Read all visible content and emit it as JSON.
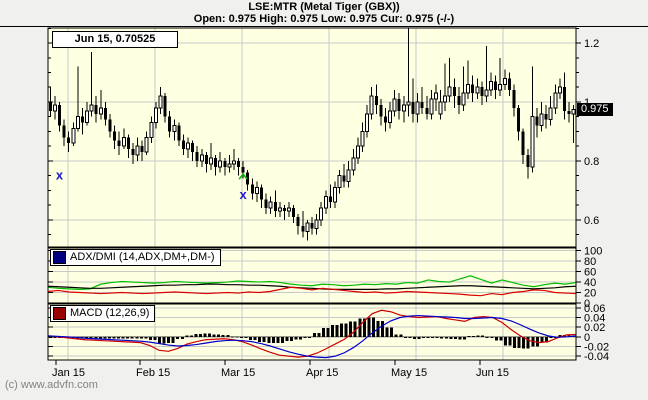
{
  "header": {
    "title": "LSE:MTR (Metal Tiger (GBX))",
    "ohlc_line": "Open: 0.975 High: 0.975 Low: 0.975 Cur: 0.975 (-/-)"
  },
  "overlays": {
    "date_price_label": "Jun 15, 0.70525",
    "adx_legend": "ADX/DMI (14,ADX,DM+,DM-)",
    "macd_legend": "MACD (12,26,9)",
    "price_tag": "0.975",
    "copyright": "(c) www.advfn.com"
  },
  "colors": {
    "outer_bg": "#f0f0ee",
    "panel_bg": "#ffffe1",
    "grid": "#c9c9c9",
    "axis": "#000000",
    "candle_up": "#ffffff",
    "candle_down": "#000000",
    "dm_plus": "#00bb00",
    "dm_minus": "#dd0000",
    "adx_line": "#000000",
    "macd_line": "#cc0000",
    "signal_line": "#0000cc",
    "histogram": "#000000",
    "adx_swatch": "#000080",
    "macd_swatch": "#990000",
    "price_tag_bg": "#000000",
    "price_tag_fg": "#ffffff",
    "marker_blue": "#1a1acc",
    "marker_green": "#00bb00"
  },
  "chart_data": [
    {
      "type": "candlestick",
      "title": "LSE:MTR daily price (GBX)",
      "ylim": [
        0.508,
        1.251
      ],
      "yticks": [
        1.2,
        1,
        0.8,
        0.6
      ],
      "ytick_labels": [
        "1.2",
        "1",
        "0.8",
        "0.6"
      ],
      "current_price": 0.975,
      "grid": true,
      "x_axis": {
        "tick_labels": [
          "Jan 15",
          "Feb 15",
          "Mar 15",
          "Apr 15",
          "May 15",
          "Jun 15"
        ]
      },
      "markers": [
        {
          "day": 2,
          "price": 0.75,
          "type": "x"
        },
        {
          "day": 42,
          "price": 0.745,
          "type": "caret"
        },
        {
          "day": 42,
          "price": 0.685,
          "type": "x"
        }
      ],
      "candles": [
        [
          1.0,
          1.05,
          0.95,
          0.97
        ],
        [
          0.97,
          1.02,
          0.94,
          0.99
        ],
        [
          0.99,
          1.0,
          0.9,
          0.92
        ],
        [
          0.92,
          0.94,
          0.85,
          0.88
        ],
        [
          0.88,
          0.9,
          0.83,
          0.86
        ],
        [
          0.86,
          0.93,
          0.85,
          0.91
        ],
        [
          0.91,
          1.12,
          0.9,
          0.95
        ],
        [
          0.95,
          0.98,
          0.89,
          0.93
        ],
        [
          0.93,
          1.0,
          0.92,
          0.97
        ],
        [
          0.97,
          1.17,
          0.95,
          0.99
        ],
        [
          0.99,
          1.02,
          0.93,
          0.96
        ],
        [
          0.96,
          1.04,
          0.94,
          0.98
        ],
        [
          0.98,
          1.0,
          0.92,
          0.94
        ],
        [
          0.94,
          0.96,
          0.88,
          0.9
        ],
        [
          0.9,
          0.92,
          0.84,
          0.87
        ],
        [
          0.87,
          0.9,
          0.82,
          0.85
        ],
        [
          0.85,
          0.91,
          0.84,
          0.88
        ],
        [
          0.88,
          0.89,
          0.81,
          0.84
        ],
        [
          0.84,
          0.86,
          0.79,
          0.82
        ],
        [
          0.82,
          0.88,
          0.8,
          0.85
        ],
        [
          0.85,
          0.87,
          0.8,
          0.83
        ],
        [
          0.83,
          0.9,
          0.82,
          0.88
        ],
        [
          0.88,
          0.95,
          0.86,
          0.93
        ],
        [
          0.93,
          1.0,
          0.91,
          0.98
        ],
        [
          0.98,
          1.05,
          0.96,
          1.02
        ],
        [
          1.02,
          1.03,
          0.93,
          0.95
        ],
        [
          0.95,
          0.97,
          0.88,
          0.9
        ],
        [
          0.9,
          0.94,
          0.87,
          0.92
        ],
        [
          0.92,
          0.93,
          0.85,
          0.87
        ],
        [
          0.87,
          0.89,
          0.82,
          0.84
        ],
        [
          0.84,
          0.88,
          0.81,
          0.86
        ],
        [
          0.86,
          0.87,
          0.8,
          0.83
        ],
        [
          0.83,
          0.85,
          0.78,
          0.8
        ],
        [
          0.8,
          0.84,
          0.78,
          0.82
        ],
        [
          0.82,
          0.83,
          0.76,
          0.79
        ],
        [
          0.79,
          0.86,
          0.77,
          0.81
        ],
        [
          0.81,
          0.82,
          0.75,
          0.78
        ],
        [
          0.78,
          0.83,
          0.76,
          0.8
        ],
        [
          0.8,
          0.81,
          0.75,
          0.78
        ],
        [
          0.78,
          0.82,
          0.76,
          0.79
        ],
        [
          0.79,
          0.84,
          0.77,
          0.8
        ],
        [
          0.8,
          0.81,
          0.75,
          0.78
        ],
        [
          0.78,
          0.8,
          0.74,
          0.76
        ],
        [
          0.76,
          0.77,
          0.7,
          0.72
        ],
        [
          0.72,
          0.74,
          0.67,
          0.69
        ],
        [
          0.69,
          0.73,
          0.66,
          0.71
        ],
        [
          0.71,
          0.72,
          0.64,
          0.67
        ],
        [
          0.67,
          0.69,
          0.62,
          0.64
        ],
        [
          0.64,
          0.68,
          0.62,
          0.66
        ],
        [
          0.66,
          0.7,
          0.61,
          0.63
        ],
        [
          0.63,
          0.66,
          0.61,
          0.64
        ],
        [
          0.64,
          0.65,
          0.6,
          0.63
        ],
        [
          0.63,
          0.66,
          0.61,
          0.64
        ],
        [
          0.64,
          0.65,
          0.59,
          0.61
        ],
        [
          0.61,
          0.62,
          0.55,
          0.58
        ],
        [
          0.58,
          0.63,
          0.54,
          0.56
        ],
        [
          0.56,
          0.6,
          0.53,
          0.59
        ],
        [
          0.59,
          0.61,
          0.55,
          0.57
        ],
        [
          0.57,
          0.62,
          0.55,
          0.6
        ],
        [
          0.6,
          0.66,
          0.58,
          0.64
        ],
        [
          0.64,
          0.7,
          0.62,
          0.68
        ],
        [
          0.68,
          0.72,
          0.64,
          0.66
        ],
        [
          0.66,
          0.73,
          0.64,
          0.71
        ],
        [
          0.71,
          0.77,
          0.69,
          0.75
        ],
        [
          0.75,
          0.79,
          0.71,
          0.73
        ],
        [
          0.73,
          0.8,
          0.71,
          0.77
        ],
        [
          0.77,
          0.84,
          0.75,
          0.81
        ],
        [
          0.81,
          0.88,
          0.79,
          0.85
        ],
        [
          0.85,
          0.93,
          0.83,
          0.9
        ],
        [
          0.9,
          0.99,
          0.88,
          0.96
        ],
        [
          0.96,
          1.05,
          0.94,
          1.02
        ],
        [
          1.02,
          1.06,
          0.96,
          0.99
        ],
        [
          0.99,
          1.01,
          0.92,
          0.95
        ],
        [
          0.95,
          0.98,
          0.9,
          0.93
        ],
        [
          0.93,
          1.0,
          0.91,
          0.97
        ],
        [
          0.97,
          1.04,
          0.95,
          1.01
        ],
        [
          1.01,
          1.03,
          0.94,
          0.97
        ],
        [
          0.97,
          1.02,
          0.93,
          0.99
        ],
        [
          0.99,
          1.25,
          0.95,
          1.0
        ],
        [
          1.0,
          1.08,
          0.93,
          0.96
        ],
        [
          0.96,
          1.03,
          0.93,
          1.0
        ],
        [
          1.0,
          1.05,
          0.96,
          0.98
        ],
        [
          0.98,
          1.02,
          0.94,
          0.96
        ],
        [
          0.96,
          1.04,
          0.94,
          1.01
        ],
        [
          1.01,
          1.06,
          0.97,
          1.03
        ],
        [
          0.96,
          1.04,
          0.94,
          1.0
        ],
        [
          1.0,
          1.13,
          0.97,
          1.02
        ],
        [
          1.02,
          1.15,
          1.0,
          1.05
        ],
        [
          1.05,
          1.08,
          0.98,
          1.02
        ],
        [
          1.02,
          1.05,
          0.96,
          0.99
        ],
        [
          0.99,
          1.12,
          0.97,
          1.03
        ],
        [
          1.03,
          1.14,
          1.01,
          1.06
        ],
        [
          1.06,
          1.09,
          1.0,
          1.03
        ],
        [
          1.03,
          1.08,
          1.01,
          1.05
        ],
        [
          1.05,
          1.07,
          0.99,
          1.02
        ],
        [
          1.02,
          1.19,
          1.0,
          1.04
        ],
        [
          1.04,
          1.1,
          1.02,
          1.07
        ],
        [
          1.07,
          1.09,
          1.01,
          1.04
        ],
        [
          1.04,
          1.15,
          1.02,
          1.06
        ],
        [
          1.06,
          1.11,
          1.04,
          1.08
        ],
        [
          1.08,
          1.1,
          1.02,
          1.04
        ],
        [
          1.04,
          1.06,
          0.95,
          0.98
        ],
        [
          0.98,
          0.99,
          0.87,
          0.9
        ],
        [
          0.9,
          0.91,
          0.79,
          0.82
        ],
        [
          0.82,
          0.84,
          0.74,
          0.78
        ],
        [
          0.78,
          1.12,
          0.76,
          0.95
        ],
        [
          0.95,
          0.98,
          0.88,
          0.92
        ],
        [
          0.92,
          1.0,
          0.9,
          0.96
        ],
        [
          0.96,
          0.99,
          0.91,
          0.94
        ],
        [
          0.94,
          1.02,
          0.92,
          0.98
        ],
        [
          0.98,
          1.06,
          0.96,
          1.03
        ],
        [
          1.03,
          1.08,
          1.01,
          1.05
        ],
        [
          1.05,
          1.1,
          0.94,
          0.97
        ],
        [
          0.97,
          1.0,
          0.93,
          0.96
        ],
        [
          0.96,
          0.99,
          0.86,
          0.975
        ]
      ]
    },
    {
      "type": "line",
      "title": "ADX/DMI (14,ADX,DM+,DM-)",
      "ylim": [
        0,
        105
      ],
      "yticks": [
        100,
        80,
        60,
        40,
        20,
        0
      ],
      "ytick_labels": [
        "100",
        "80",
        "60",
        "40",
        "20",
        "0"
      ],
      "grid": true,
      "series": [
        {
          "name": "DM+",
          "color": "#00bb00",
          "values": [
            30,
            28,
            27,
            26,
            27,
            36,
            39,
            41,
            40,
            39,
            38,
            39,
            41,
            40,
            39,
            38,
            39,
            40,
            42,
            41,
            40,
            41,
            39,
            36,
            34,
            33,
            36,
            35,
            33,
            34,
            36,
            35,
            37,
            36,
            39,
            38,
            44,
            41,
            40,
            46,
            52,
            45,
            38,
            44,
            39,
            34,
            31,
            35,
            38,
            36,
            39
          ]
        },
        {
          "name": "ADX",
          "color": "#000000",
          "values": [
            32,
            31,
            30,
            29,
            28,
            28,
            29,
            30,
            31,
            32,
            33,
            34,
            34,
            35,
            35,
            36,
            36,
            35,
            35,
            34,
            34,
            33,
            32,
            30,
            29,
            28,
            27,
            26,
            26,
            26,
            26,
            26,
            27,
            27,
            28,
            29,
            30,
            31,
            32,
            33,
            33,
            32,
            31,
            30,
            29,
            28,
            27,
            28,
            29,
            31,
            32
          ]
        },
        {
          "name": "DM-",
          "color": "#dd0000",
          "values": [
            22,
            24,
            21,
            20,
            19,
            18,
            19,
            20,
            19,
            18,
            19,
            20,
            21,
            20,
            19,
            18,
            19,
            20,
            19,
            21,
            20,
            22,
            26,
            30,
            28,
            25,
            28,
            26,
            24,
            22,
            20,
            21,
            19,
            20,
            22,
            21,
            20,
            19,
            18,
            17,
            15,
            14,
            18,
            16,
            20,
            22,
            25,
            24,
            20,
            19,
            18
          ]
        }
      ]
    },
    {
      "type": "macd",
      "title": "MACD (12,26,9)",
      "ylim": [
        -0.048,
        0.068
      ],
      "yticks": [
        0.06,
        0.04,
        0.02,
        0,
        -0.02,
        -0.04
      ],
      "ytick_labels": [
        "0.06",
        "0.04",
        "0.02",
        "0",
        "-0.02",
        "-0.04"
      ],
      "grid": true,
      "series": [
        {
          "name": "MACD",
          "color": "#cc0000",
          "values": [
            0.001,
            0.0,
            -0.002,
            -0.004,
            -0.006,
            -0.007,
            -0.008,
            -0.009,
            -0.01,
            -0.011,
            -0.012,
            -0.018,
            -0.028,
            -0.03,
            -0.024,
            -0.015,
            -0.01,
            -0.006,
            -0.005,
            -0.004,
            -0.006,
            -0.01,
            -0.017,
            -0.025,
            -0.032,
            -0.038,
            -0.04,
            -0.042,
            -0.04,
            -0.034,
            -0.025,
            -0.015,
            -0.005,
            0.01,
            0.03,
            0.048,
            0.055,
            0.052,
            0.045,
            0.042,
            0.04,
            0.041,
            0.042,
            0.038,
            0.035,
            0.032,
            0.04,
            0.042,
            0.04,
            0.03,
            0.015,
            0.002,
            -0.008,
            -0.012,
            -0.01,
            -0.002,
            0.004,
            0.005
          ]
        },
        {
          "name": "Signal",
          "color": "#0000cc",
          "values": [
            0.002,
            0.001,
            0.0,
            -0.001,
            -0.003,
            -0.004,
            -0.005,
            -0.006,
            -0.007,
            -0.008,
            -0.009,
            -0.011,
            -0.014,
            -0.017,
            -0.019,
            -0.018,
            -0.016,
            -0.013,
            -0.01,
            -0.008,
            -0.007,
            -0.008,
            -0.01,
            -0.014,
            -0.019,
            -0.025,
            -0.031,
            -0.036,
            -0.04,
            -0.042,
            -0.043,
            -0.04,
            -0.033,
            -0.022,
            -0.008,
            0.008,
            0.022,
            0.033,
            0.04,
            0.043,
            0.044,
            0.043,
            0.042,
            0.041,
            0.04,
            0.038,
            0.038,
            0.039,
            0.04,
            0.038,
            0.033,
            0.025,
            0.016,
            0.008,
            0.002,
            -0.001,
            0.0,
            0.002
          ]
        }
      ],
      "histogram": [
        -0.001,
        -0.001,
        -0.002,
        -0.003,
        -0.003,
        -0.003,
        -0.003,
        -0.003,
        -0.003,
        -0.003,
        -0.003,
        -0.007,
        -0.014,
        -0.013,
        -0.005,
        0.003,
        0.006,
        0.007,
        0.005,
        0.004,
        0.001,
        -0.002,
        -0.007,
        -0.011,
        -0.013,
        -0.013,
        -0.009,
        -0.006,
        0.0,
        0.008,
        0.018,
        0.025,
        0.028,
        0.032,
        0.038,
        0.04,
        0.033,
        0.019,
        0.005,
        -0.001,
        -0.004,
        -0.002,
        0.0,
        -0.003,
        -0.005,
        -0.006,
        0.002,
        0.003,
        0.0,
        -0.008,
        -0.018,
        -0.023,
        -0.024,
        -0.02,
        -0.012,
        -0.001,
        0.004,
        0.003
      ]
    }
  ]
}
